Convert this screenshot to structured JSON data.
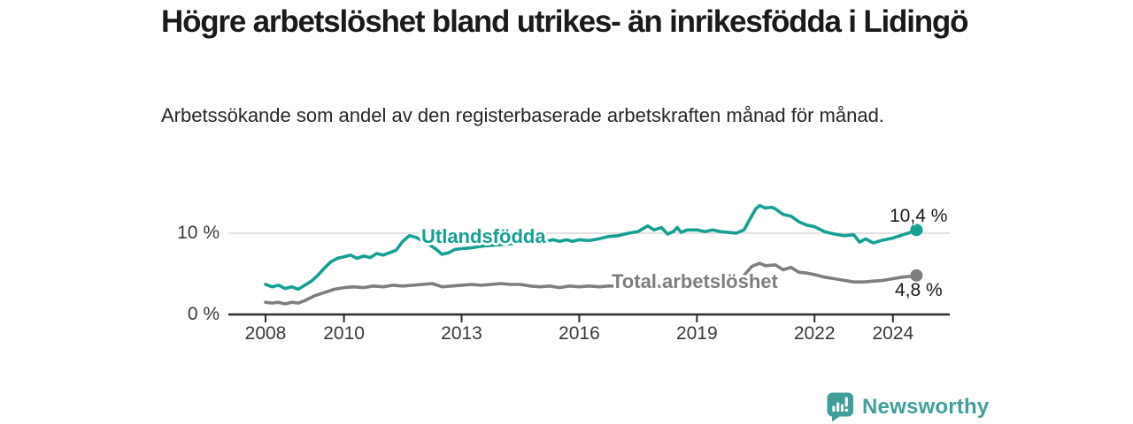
{
  "title": "Högre arbetslöshet bland utrikes- än inrikesfödda i Lidingö",
  "subtitle": "Arbetssökande som andel av den registerbaserade arbetskraften månad för månad.",
  "branding": {
    "name": "Newsworthy",
    "icon": "bar-chart-speech-bubble-icon",
    "color": "#40a099"
  },
  "chart_data": {
    "type": "line",
    "title": "Högre arbetslöshet bland utrikes- än inrikesfödda i Lidingö",
    "subtitle": "Arbetssökande som andel av den registerbaserade arbetskraften månad för månad.",
    "xlabel": "",
    "ylabel": "",
    "ylim": [
      0,
      14.5
    ],
    "xlim": [
      2007.9,
      2025.4
    ],
    "grid": "single-horizontal-gridline-at-10",
    "legend_position": "inline-labels-on-lines",
    "axis_color": "#2d2d2d",
    "grid_color": "#d9d9d9",
    "yticks": [
      {
        "value": 10,
        "label": "10 %"
      },
      {
        "value": 0,
        "label": "0 %"
      }
    ],
    "xticks": [
      {
        "year": 2008,
        "label": "2008"
      },
      {
        "year": 2010,
        "label": "2010"
      },
      {
        "year": 2013,
        "label": "2013"
      },
      {
        "year": 2016,
        "label": "2016"
      },
      {
        "year": 2019,
        "label": "2019"
      },
      {
        "year": 2022,
        "label": "2022"
      },
      {
        "year": 2024,
        "label": "2024"
      }
    ],
    "series": [
      {
        "name": "Utlandsfödda",
        "color": "#16a093",
        "end_label": "10,4 %",
        "end_value": 10.4,
        "points": [
          [
            2008.0,
            3.7
          ],
          [
            2008.17,
            3.4
          ],
          [
            2008.33,
            3.6
          ],
          [
            2008.5,
            3.2
          ],
          [
            2008.67,
            3.4
          ],
          [
            2008.83,
            3.1
          ],
          [
            2009.0,
            3.6
          ],
          [
            2009.17,
            4.1
          ],
          [
            2009.33,
            4.8
          ],
          [
            2009.5,
            5.7
          ],
          [
            2009.67,
            6.5
          ],
          [
            2009.83,
            6.9
          ],
          [
            2010.0,
            7.1
          ],
          [
            2010.17,
            7.3
          ],
          [
            2010.33,
            6.9
          ],
          [
            2010.5,
            7.2
          ],
          [
            2010.67,
            7.0
          ],
          [
            2010.83,
            7.5
          ],
          [
            2011.0,
            7.3
          ],
          [
            2011.17,
            7.6
          ],
          [
            2011.33,
            7.9
          ],
          [
            2011.5,
            9.0
          ],
          [
            2011.67,
            9.7
          ],
          [
            2011.83,
            9.5
          ],
          [
            2012.0,
            9.1
          ],
          [
            2012.17,
            8.6
          ],
          [
            2012.33,
            8.1
          ],
          [
            2012.5,
            7.4
          ],
          [
            2012.67,
            7.6
          ],
          [
            2012.83,
            8.0
          ],
          [
            2013.0,
            8.1
          ],
          [
            2013.25,
            8.2
          ],
          [
            2013.5,
            8.4
          ],
          [
            2013.75,
            8.5
          ],
          [
            2014.0,
            8.6
          ],
          [
            2014.25,
            8.7
          ],
          [
            2014.5,
            8.8
          ],
          [
            2014.75,
            9.1
          ],
          [
            2015.0,
            9.3
          ],
          [
            2015.17,
            9.0
          ],
          [
            2015.33,
            9.2
          ],
          [
            2015.5,
            9.0
          ],
          [
            2015.67,
            9.2
          ],
          [
            2015.83,
            9.0
          ],
          [
            2016.0,
            9.2
          ],
          [
            2016.25,
            9.1
          ],
          [
            2016.5,
            9.3
          ],
          [
            2016.75,
            9.6
          ],
          [
            2017.0,
            9.7
          ],
          [
            2017.25,
            10.0
          ],
          [
            2017.5,
            10.2
          ],
          [
            2017.75,
            10.9
          ],
          [
            2017.9,
            10.4
          ],
          [
            2018.1,
            10.7
          ],
          [
            2018.25,
            9.9
          ],
          [
            2018.4,
            10.2
          ],
          [
            2018.5,
            10.7
          ],
          [
            2018.6,
            10.1
          ],
          [
            2018.75,
            10.4
          ],
          [
            2019.0,
            10.4
          ],
          [
            2019.2,
            10.2
          ],
          [
            2019.4,
            10.4
          ],
          [
            2019.6,
            10.2
          ],
          [
            2019.8,
            10.1
          ],
          [
            2020.0,
            10.0
          ],
          [
            2020.2,
            10.4
          ],
          [
            2020.35,
            11.7
          ],
          [
            2020.5,
            13.0
          ],
          [
            2020.6,
            13.4
          ],
          [
            2020.75,
            13.1
          ],
          [
            2020.9,
            13.2
          ],
          [
            2021.0,
            13.0
          ],
          [
            2021.2,
            12.3
          ],
          [
            2021.4,
            12.1
          ],
          [
            2021.6,
            11.4
          ],
          [
            2021.8,
            11.0
          ],
          [
            2022.0,
            10.8
          ],
          [
            2022.25,
            10.2
          ],
          [
            2022.5,
            9.9
          ],
          [
            2022.75,
            9.7
          ],
          [
            2023.0,
            9.8
          ],
          [
            2023.15,
            8.9
          ],
          [
            2023.3,
            9.3
          ],
          [
            2023.5,
            8.8
          ],
          [
            2023.7,
            9.1
          ],
          [
            2024.0,
            9.4
          ],
          [
            2024.25,
            9.8
          ],
          [
            2024.45,
            10.1
          ],
          [
            2024.6,
            10.4
          ]
        ]
      },
      {
        "name": "Total arbetslöshet",
        "color": "#7e7e7e",
        "end_label": "4,8 %",
        "end_value": 4.8,
        "points": [
          [
            2008.0,
            1.5
          ],
          [
            2008.17,
            1.4
          ],
          [
            2008.33,
            1.5
          ],
          [
            2008.5,
            1.3
          ],
          [
            2008.67,
            1.5
          ],
          [
            2008.83,
            1.4
          ],
          [
            2009.0,
            1.7
          ],
          [
            2009.25,
            2.3
          ],
          [
            2009.5,
            2.7
          ],
          [
            2009.75,
            3.1
          ],
          [
            2010.0,
            3.3
          ],
          [
            2010.25,
            3.4
          ],
          [
            2010.5,
            3.3
          ],
          [
            2010.75,
            3.5
          ],
          [
            2011.0,
            3.4
          ],
          [
            2011.25,
            3.6
          ],
          [
            2011.5,
            3.5
          ],
          [
            2011.75,
            3.6
          ],
          [
            2012.0,
            3.7
          ],
          [
            2012.25,
            3.8
          ],
          [
            2012.5,
            3.4
          ],
          [
            2012.75,
            3.5
          ],
          [
            2013.0,
            3.6
          ],
          [
            2013.25,
            3.7
          ],
          [
            2013.5,
            3.6
          ],
          [
            2013.75,
            3.7
          ],
          [
            2014.0,
            3.8
          ],
          [
            2014.25,
            3.7
          ],
          [
            2014.5,
            3.7
          ],
          [
            2014.75,
            3.5
          ],
          [
            2015.0,
            3.4
          ],
          [
            2015.25,
            3.5
          ],
          [
            2015.5,
            3.3
          ],
          [
            2015.75,
            3.5
          ],
          [
            2016.0,
            3.4
          ],
          [
            2016.25,
            3.5
          ],
          [
            2016.5,
            3.4
          ],
          [
            2016.75,
            3.5
          ],
          [
            2017.0,
            3.5
          ],
          [
            2017.25,
            3.6
          ],
          [
            2017.5,
            3.5
          ],
          [
            2017.75,
            3.6
          ],
          [
            2018.0,
            3.5
          ],
          [
            2018.25,
            3.4
          ],
          [
            2018.5,
            3.5
          ],
          [
            2018.75,
            3.5
          ],
          [
            2019.0,
            3.6
          ],
          [
            2019.25,
            3.5
          ],
          [
            2019.5,
            3.7
          ],
          [
            2019.75,
            3.8
          ],
          [
            2020.0,
            4.0
          ],
          [
            2020.2,
            4.8
          ],
          [
            2020.4,
            5.9
          ],
          [
            2020.6,
            6.3
          ],
          [
            2020.75,
            6.0
          ],
          [
            2021.0,
            6.1
          ],
          [
            2021.2,
            5.5
          ],
          [
            2021.4,
            5.8
          ],
          [
            2021.6,
            5.2
          ],
          [
            2021.8,
            5.1
          ],
          [
            2022.0,
            4.9
          ],
          [
            2022.25,
            4.6
          ],
          [
            2022.5,
            4.4
          ],
          [
            2022.75,
            4.2
          ],
          [
            2023.0,
            4.0
          ],
          [
            2023.25,
            4.0
          ],
          [
            2023.5,
            4.1
          ],
          [
            2023.75,
            4.2
          ],
          [
            2024.0,
            4.4
          ],
          [
            2024.25,
            4.6
          ],
          [
            2024.45,
            4.7
          ],
          [
            2024.6,
            4.8
          ]
        ]
      }
    ]
  }
}
